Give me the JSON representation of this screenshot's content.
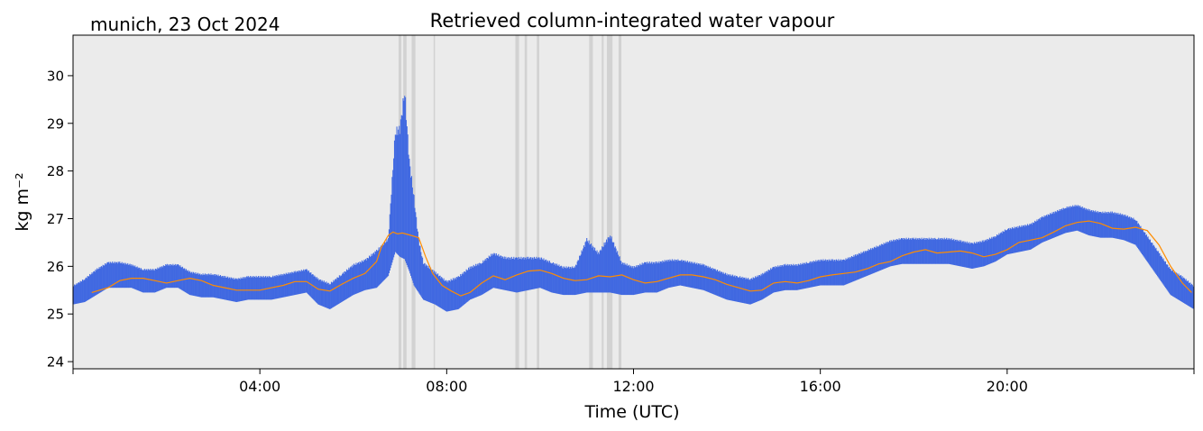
{
  "chart_data": {
    "type": "scatter",
    "title": "Retrieved column-integrated water vapour",
    "subtitle": "munich, 23 Oct 2024",
    "xlabel": "Time (UTC)",
    "ylabel": "kg m⁻²",
    "xlim": [
      0,
      24
    ],
    "ylim": [
      23.85,
      30.85
    ],
    "x_ticks": [
      0,
      4,
      8,
      12,
      16,
      20,
      24
    ],
    "x_tick_labels": [
      "",
      "04:00",
      "08:00",
      "12:00",
      "16:00",
      "20:00",
      ""
    ],
    "y_ticks": [
      24,
      25,
      26,
      27,
      28,
      29,
      30
    ],
    "y_tick_labels": [
      "24",
      "25",
      "26",
      "27",
      "28",
      "29",
      "30"
    ],
    "grid": false,
    "colors": {
      "background": "#ebebeb",
      "points": "#4169e1",
      "smoothed_line": "#ff8c00",
      "flagged_spans": "#d2d2d2"
    },
    "flagged_spans": [
      [
        6.97,
        7.03
      ],
      [
        7.07,
        7.14
      ],
      [
        7.25,
        7.33
      ],
      [
        7.72,
        7.74
      ],
      [
        9.47,
        9.55
      ],
      [
        9.67,
        9.72
      ],
      [
        9.93,
        9.98
      ],
      [
        11.05,
        11.13
      ],
      [
        11.32,
        11.36
      ],
      [
        11.43,
        11.55
      ],
      [
        11.68,
        11.74
      ]
    ],
    "series": [
      {
        "style": "points",
        "x": [
          0.0,
          0.25,
          0.5,
          0.75,
          1.0,
          1.25,
          1.5,
          1.75,
          2.0,
          2.25,
          2.5,
          2.75,
          3.0,
          3.25,
          3.5,
          3.75,
          4.0,
          4.25,
          4.5,
          4.75,
          5.0,
          5.25,
          5.5,
          5.75,
          6.0,
          6.25,
          6.5,
          6.75,
          6.9,
          7.0,
          7.1,
          7.2,
          7.3,
          7.4,
          7.5,
          7.75,
          8.0,
          8.25,
          8.5,
          8.75,
          9.0,
          9.25,
          9.5,
          9.75,
          10.0,
          10.25,
          10.5,
          10.75,
          11.0,
          11.25,
          11.5,
          11.75,
          12.0,
          12.25,
          12.5,
          12.75,
          13.0,
          13.25,
          13.5,
          13.75,
          14.0,
          14.25,
          14.5,
          14.75,
          15.0,
          15.25,
          15.5,
          15.75,
          16.0,
          16.25,
          16.5,
          16.75,
          17.0,
          17.25,
          17.5,
          17.75,
          18.0,
          18.25,
          18.5,
          18.75,
          19.0,
          19.25,
          19.5,
          19.75,
          20.0,
          20.25,
          20.5,
          20.75,
          21.0,
          21.25,
          21.5,
          21.75,
          22.0,
          22.25,
          22.5,
          22.75,
          23.0,
          23.25,
          23.5,
          23.75,
          24.0
        ],
        "low": [
          25.2,
          25.25,
          25.4,
          25.55,
          25.55,
          25.55,
          25.45,
          25.45,
          25.55,
          25.55,
          25.4,
          25.35,
          25.35,
          25.3,
          25.25,
          25.3,
          25.3,
          25.3,
          25.35,
          25.4,
          25.45,
          25.2,
          25.1,
          25.25,
          25.4,
          25.5,
          25.55,
          25.8,
          26.3,
          26.2,
          26.15,
          25.9,
          25.6,
          25.45,
          25.3,
          25.2,
          25.05,
          25.1,
          25.3,
          25.4,
          25.55,
          25.5,
          25.45,
          25.5,
          25.55,
          25.45,
          25.4,
          25.4,
          25.45,
          25.45,
          25.45,
          25.4,
          25.4,
          25.45,
          25.45,
          25.55,
          25.6,
          25.55,
          25.5,
          25.4,
          25.3,
          25.25,
          25.2,
          25.3,
          25.45,
          25.5,
          25.5,
          25.55,
          25.6,
          25.6,
          25.6,
          25.7,
          25.8,
          25.9,
          26.0,
          26.05,
          26.05,
          26.05,
          26.05,
          26.05,
          26.0,
          25.95,
          26.0,
          26.1,
          26.25,
          26.3,
          26.35,
          26.5,
          26.6,
          26.7,
          26.75,
          26.65,
          26.6,
          26.6,
          26.55,
          26.45,
          26.1,
          25.75,
          25.4,
          25.25,
          25.1
        ],
        "high": [
          25.6,
          25.75,
          25.95,
          26.1,
          26.1,
          26.05,
          25.95,
          25.95,
          26.05,
          26.05,
          25.9,
          25.85,
          25.85,
          25.8,
          25.75,
          25.8,
          25.8,
          25.8,
          25.85,
          25.9,
          25.95,
          25.75,
          25.65,
          25.85,
          26.05,
          26.15,
          26.35,
          26.6,
          28.9,
          29.0,
          29.8,
          28.3,
          27.5,
          26.6,
          26.1,
          25.9,
          25.7,
          25.8,
          26.0,
          26.1,
          26.3,
          26.2,
          26.2,
          26.2,
          26.2,
          26.1,
          26.0,
          26.0,
          26.6,
          26.3,
          26.7,
          26.1,
          26.0,
          26.1,
          26.1,
          26.15,
          26.15,
          26.1,
          26.05,
          25.95,
          25.85,
          25.8,
          25.75,
          25.85,
          26.0,
          26.05,
          26.05,
          26.1,
          26.15,
          26.15,
          26.15,
          26.25,
          26.35,
          26.45,
          26.55,
          26.6,
          26.6,
          26.6,
          26.6,
          26.6,
          26.55,
          26.5,
          26.55,
          26.65,
          26.8,
          26.85,
          26.9,
          27.05,
          27.15,
          27.25,
          27.3,
          27.2,
          27.15,
          27.15,
          27.1,
          27.0,
          26.65,
          26.3,
          25.95,
          25.8,
          25.6
        ]
      },
      {
        "style": "line",
        "x": [
          0.4,
          0.75,
          1.0,
          1.25,
          1.5,
          1.75,
          2.0,
          2.25,
          2.5,
          2.75,
          3.0,
          3.25,
          3.5,
          3.75,
          4.0,
          4.25,
          4.5,
          4.75,
          5.0,
          5.25,
          5.5,
          5.75,
          6.0,
          6.25,
          6.5,
          6.6,
          6.75,
          6.85,
          6.95,
          7.05,
          7.2,
          7.4,
          7.55,
          7.7,
          7.9,
          8.1,
          8.3,
          8.5,
          8.75,
          9.0,
          9.25,
          9.5,
          9.75,
          10.0,
          10.25,
          10.5,
          10.75,
          11.0,
          11.25,
          11.5,
          11.75,
          12.0,
          12.25,
          12.5,
          12.75,
          13.0,
          13.25,
          13.5,
          13.75,
          14.0,
          14.25,
          14.5,
          14.75,
          15.0,
          15.25,
          15.5,
          15.75,
          16.0,
          16.25,
          16.5,
          16.75,
          17.0,
          17.25,
          17.5,
          17.75,
          18.0,
          18.25,
          18.5,
          18.75,
          19.0,
          19.25,
          19.5,
          19.75,
          20.0,
          20.25,
          20.5,
          20.75,
          21.0,
          21.25,
          21.5,
          21.75,
          22.0,
          22.25,
          22.5,
          22.75,
          23.0,
          23.25,
          23.5,
          23.75,
          23.95
        ],
        "y": [
          25.45,
          25.55,
          25.7,
          25.75,
          25.75,
          25.7,
          25.65,
          25.7,
          25.75,
          25.7,
          25.6,
          25.55,
          25.5,
          25.5,
          25.5,
          25.55,
          25.6,
          25.68,
          25.68,
          25.52,
          25.48,
          25.62,
          25.75,
          25.85,
          26.1,
          26.4,
          26.65,
          26.72,
          26.68,
          26.7,
          26.66,
          26.6,
          26.2,
          25.85,
          25.6,
          25.48,
          25.38,
          25.45,
          25.65,
          25.8,
          25.72,
          25.82,
          25.9,
          25.92,
          25.85,
          25.75,
          25.7,
          25.72,
          25.8,
          25.78,
          25.82,
          25.72,
          25.65,
          25.68,
          25.75,
          25.82,
          25.82,
          25.78,
          25.72,
          25.62,
          25.55,
          25.48,
          25.5,
          25.65,
          25.68,
          25.65,
          25.7,
          25.78,
          25.82,
          25.85,
          25.88,
          25.95,
          26.05,
          26.1,
          26.22,
          26.3,
          26.35,
          26.28,
          26.3,
          26.32,
          26.28,
          26.2,
          26.25,
          26.35,
          26.5,
          26.55,
          26.6,
          26.72,
          26.85,
          26.92,
          26.95,
          26.9,
          26.8,
          26.78,
          26.82,
          26.75,
          26.45,
          26.0,
          25.65,
          25.45
        ]
      }
    ]
  }
}
